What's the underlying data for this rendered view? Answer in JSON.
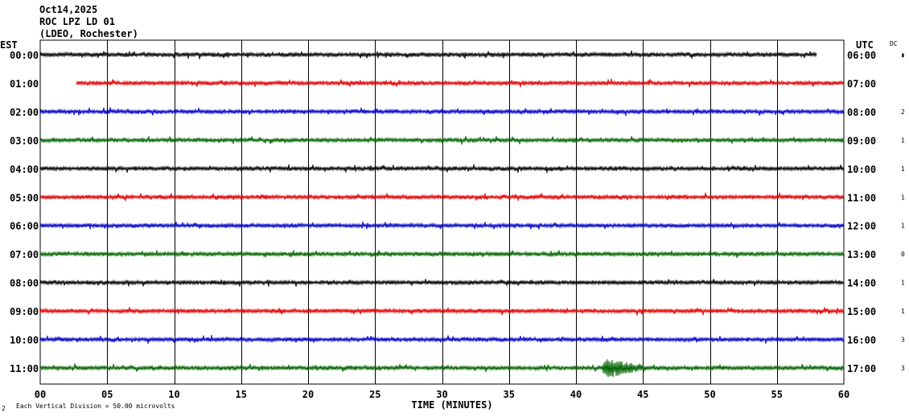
{
  "header": {
    "date": "Oct14,2025",
    "station": "ROC LPZ LD 01",
    "network": "(LDEO, Rochester)"
  },
  "left_axis_label": "EST",
  "right_axis_label": "UTC",
  "dc_label": "DC",
  "x_axis_title": "TIME (MINUTES)",
  "scale_note": "Each Vertical Division = 50.00 microvolts",
  "corner_mark": "2",
  "colors": {
    "trace_cycle": [
      "#000000",
      "#e00000",
      "#0000cc",
      "#006400"
    ],
    "grid": "#000000",
    "background": "#ffffff"
  },
  "chart_data": {
    "type": "line",
    "xlabel": "TIME (MINUTES)",
    "xlim": [
      0,
      60
    ],
    "x_ticks": [
      "00",
      "05",
      "10",
      "15",
      "20",
      "25",
      "30",
      "35",
      "40",
      "45",
      "50",
      "55",
      "60"
    ],
    "rows": [
      {
        "est": "00:00",
        "utc": "06:00",
        "dc": "▮",
        "start_min": 0,
        "end_min": 58
      },
      {
        "est": "01:00",
        "utc": "07:00",
        "dc": "",
        "start_min": 2.7,
        "end_min": 60
      },
      {
        "est": "02:00",
        "utc": "08:00",
        "dc": "2",
        "start_min": 0,
        "end_min": 60
      },
      {
        "est": "03:00",
        "utc": "09:00",
        "dc": "1",
        "start_min": 0,
        "end_min": 60
      },
      {
        "est": "04:00",
        "utc": "10:00",
        "dc": "1",
        "start_min": 0,
        "end_min": 60
      },
      {
        "est": "05:00",
        "utc": "11:00",
        "dc": "1",
        "start_min": 0,
        "end_min": 60
      },
      {
        "est": "06:00",
        "utc": "12:00",
        "dc": "1",
        "start_min": 0,
        "end_min": 60
      },
      {
        "est": "07:00",
        "utc": "13:00",
        "dc": "0",
        "start_min": 0,
        "end_min": 60
      },
      {
        "est": "08:00",
        "utc": "14:00",
        "dc": "1",
        "start_min": 0,
        "end_min": 60
      },
      {
        "est": "09:00",
        "utc": "15:00",
        "dc": "1",
        "start_min": 0,
        "end_min": 60
      },
      {
        "est": "10:00",
        "utc": "16:00",
        "dc": "3",
        "start_min": 0,
        "end_min": 60
      },
      {
        "est": "11:00",
        "utc": "17:00",
        "dc": "3",
        "start_min": 0,
        "end_min": 60
      }
    ],
    "events": [
      {
        "row": 11,
        "start_min": 41.8,
        "peak_min": 42.4,
        "end_min": 45.5
      }
    ]
  }
}
